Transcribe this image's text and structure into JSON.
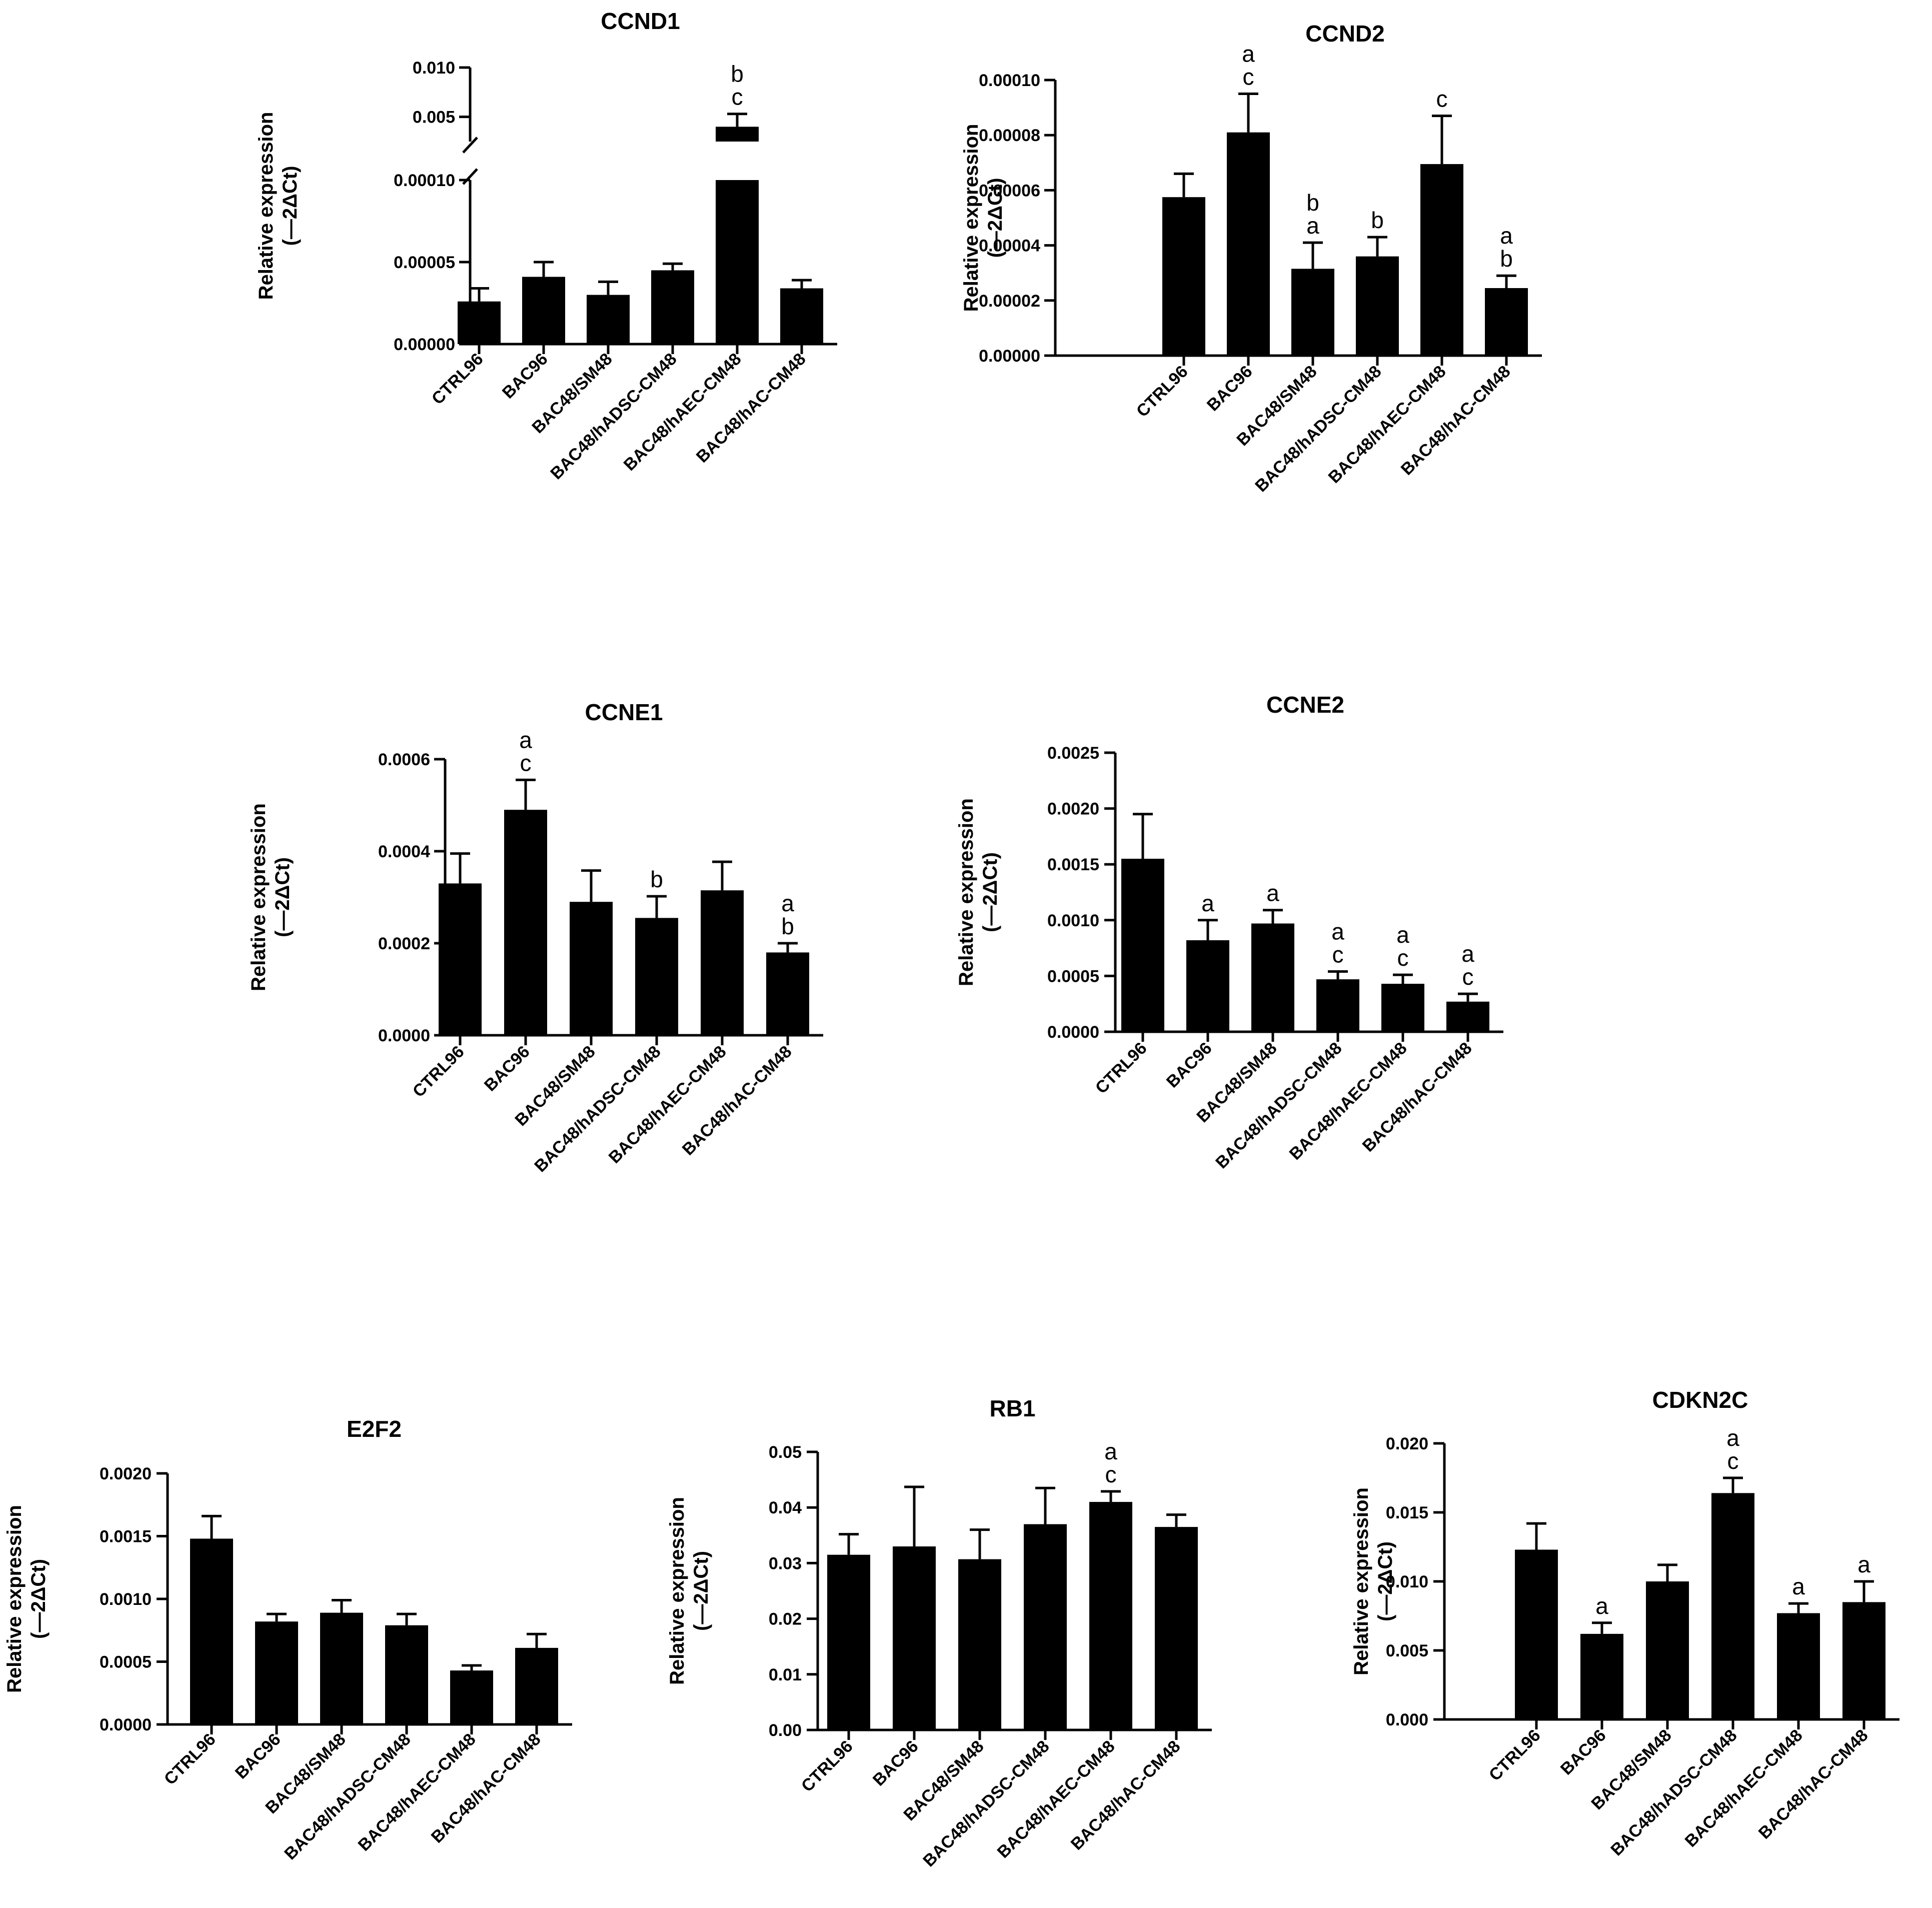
{
  "figure": {
    "panels": [
      "CCND1",
      "CCND2",
      "CCNE1",
      "CCNE2",
      "E2F2",
      "RB1",
      "CDKN2C"
    ]
  },
  "chart_data": [
    {
      "type": "bar",
      "title": "CCND1",
      "ylabel": [
        "Relative expression",
        "(—2ΔCt)"
      ],
      "categories": [
        "CTRL96",
        "BAC96",
        "BAC48/SM48",
        "BAC48/hADSC-CM48",
        "BAC48/hAEC-CM48",
        "BAC48/hAC-CM48"
      ],
      "values": [
        2.6e-05,
        4.1e-05,
        3e-05,
        4.5e-05,
        0.004,
        3.4e-05
      ],
      "errors": [
        8e-06,
        9e-06,
        8e-06,
        4e-06,
        0.0013,
        5e-06
      ],
      "significance": [
        "",
        "",
        "",
        "",
        "b\nc",
        ""
      ],
      "axis_break": true,
      "ylim_lower": [
        0,
        0.0001
      ],
      "yticks_lower": [
        "0.00000",
        "0.00005",
        "0.00010"
      ],
      "ylim_upper": [
        0.0025,
        0.01
      ],
      "yticks_upper": [
        "0.005",
        "0.010"
      ]
    },
    {
      "type": "bar",
      "title": "CCND2",
      "ylabel": [
        "Relative expression",
        "(—2ΔCt)"
      ],
      "categories": [
        "CTRL96",
        "BAC96",
        "BAC48/SM48",
        "BAC48/hADSC-CM48",
        "BAC48/hAEC-CM48",
        "BAC48/hAC-CM48"
      ],
      "values": [
        5.75e-05,
        8.1e-05,
        3.15e-05,
        3.6e-05,
        6.95e-05,
        2.45e-05
      ],
      "errors": [
        8.5e-06,
        1.4e-05,
        9.5e-06,
        7e-06,
        1.75e-05,
        4.5e-06
      ],
      "significance": [
        "",
        "a\nc",
        "b\na",
        "b",
        "c",
        "a\nb"
      ],
      "ylim": [
        0,
        0.0001
      ],
      "yticks": [
        "0.00000",
        "0.00002",
        "0.00004",
        "0.00006",
        "0.00008",
        "0.00010"
      ]
    },
    {
      "type": "bar",
      "title": "CCNE1",
      "ylabel": [
        "Relative expression",
        "(—2ΔCt)"
      ],
      "categories": [
        "CTRL96",
        "BAC96",
        "BAC48/SM48",
        "BAC48/hADSC-CM48",
        "BAC48/hAEC-CM48",
        "BAC48/hAC-CM48"
      ],
      "values": [
        0.00033,
        0.00049,
        0.00029,
        0.000255,
        0.000315,
        0.00018
      ],
      "errors": [
        6.5e-05,
        6.5e-05,
        6.8e-05,
        4.7e-05,
        6.2e-05,
        2e-05
      ],
      "significance": [
        "",
        "a\nc",
        "",
        "b",
        "",
        "a\nb"
      ],
      "ylim": [
        0,
        0.0006
      ],
      "yticks": [
        "0.0000",
        "0.0002",
        "0.0004",
        "0.0006"
      ]
    },
    {
      "type": "bar",
      "title": "CCNE2",
      "ylabel": [
        "Relative expression",
        "(—2ΔCt)"
      ],
      "categories": [
        "CTRL96",
        "BAC96",
        "BAC48/SM48",
        "BAC48/hADSC-CM48",
        "BAC48/hAEC-CM48",
        "BAC48/hAC-CM48"
      ],
      "values": [
        0.00155,
        0.00082,
        0.00097,
        0.00047,
        0.00043,
        0.00027
      ],
      "errors": [
        0.0004,
        0.00018,
        0.00012,
        7e-05,
        8e-05,
        7e-05
      ],
      "significance": [
        "",
        "a",
        "a",
        "a\nc",
        "a\nc",
        "a\nc"
      ],
      "ylim": [
        0,
        0.0025
      ],
      "yticks": [
        "0.0000",
        "0.0005",
        "0.0010",
        "0.0015",
        "0.0020",
        "0.0025"
      ]
    },
    {
      "type": "bar",
      "title": "E2F2",
      "ylabel": [
        "Relative expression",
        "(—2ΔCt)"
      ],
      "categories": [
        "CTRL96",
        "BAC96",
        "BAC48/SM48",
        "BAC48/hADSC-CM48",
        "BAC48/hAEC-CM48",
        "BAC48/hAC-CM48"
      ],
      "values": [
        0.00148,
        0.00082,
        0.00089,
        0.00079,
        0.00043,
        0.00061
      ],
      "errors": [
        0.00018,
        6e-05,
        0.0001,
        9e-05,
        4e-05,
        0.00011
      ],
      "significance": [
        "",
        "",
        "",
        "",
        "",
        ""
      ],
      "ylim": [
        0,
        0.002
      ],
      "yticks": [
        "0.0000",
        "0.0005",
        "0.0010",
        "0.0015",
        "0.0020"
      ]
    },
    {
      "type": "bar",
      "title": "RB1",
      "ylabel": [
        "Relative expression",
        "(—2ΔCt)"
      ],
      "categories": [
        "CTRL96",
        "BAC96",
        "BAC48/SM48",
        "BAC48/hADSC-CM48",
        "BAC48/hAEC-CM48",
        "BAC48/hAC-CM48"
      ],
      "values": [
        0.0315,
        0.033,
        0.0307,
        0.037,
        0.041,
        0.0365
      ],
      "errors": [
        0.0037,
        0.0107,
        0.0053,
        0.0065,
        0.0019,
        0.0022
      ],
      "significance": [
        "",
        "",
        "",
        "",
        "a\nc",
        ""
      ],
      "ylim": [
        0,
        0.05
      ],
      "yticks": [
        "0.00",
        "0.01",
        "0.02",
        "0.03",
        "0.04",
        "0.05"
      ]
    },
    {
      "type": "bar",
      "title": "CDKN2C",
      "ylabel": [
        "Relative expression",
        "(—2ΔCt)"
      ],
      "categories": [
        "CTRL96",
        "BAC96",
        "BAC48/SM48",
        "BAC48/hADSC-CM48",
        "BAC48/hAEC-CM48",
        "BAC48/hAC-CM48"
      ],
      "values": [
        0.0123,
        0.0062,
        0.01,
        0.0164,
        0.0077,
        0.0085
      ],
      "errors": [
        0.0019,
        0.0008,
        0.0012,
        0.0011,
        0.0007,
        0.0015
      ],
      "significance": [
        "",
        "a",
        "",
        "a\nc",
        "a",
        "a"
      ],
      "ylim": [
        0,
        0.02
      ],
      "yticks": [
        "0.000",
        "0.005",
        "0.010",
        "0.015",
        "0.020"
      ]
    }
  ]
}
